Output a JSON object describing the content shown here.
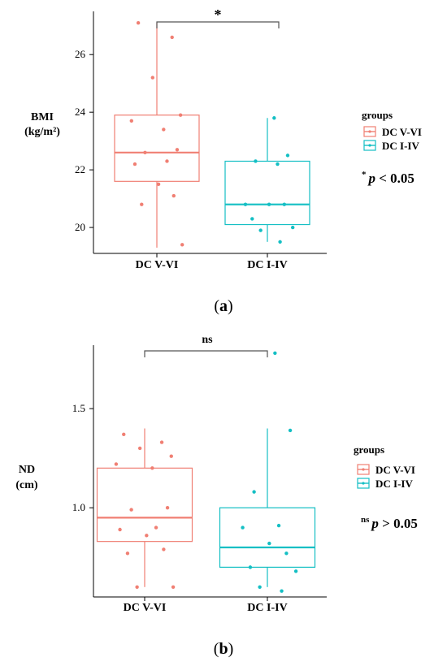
{
  "chart_data": [
    {
      "type": "box",
      "id": "a",
      "ylabel_line1": "BMI",
      "ylabel_line2": "(kg/m²)",
      "ylim": [
        19.1,
        27.5
      ],
      "yticks": [
        "20",
        "22",
        "24",
        "26"
      ],
      "ytick_values": [
        20,
        22,
        24,
        26
      ],
      "categories": [
        "DC V-VI",
        "DC I-IV"
      ],
      "series": [
        {
          "name": "DC V-VI",
          "color": "#f07f73",
          "box": {
            "q1": 21.6,
            "median": 22.6,
            "q3": 23.9,
            "whisker_low": 19.3,
            "whisker_high": 27.1
          },
          "points": [
            27.1,
            26.6,
            25.2,
            23.9,
            23.7,
            23.4,
            22.7,
            22.6,
            22.3,
            22.2,
            21.5,
            21.1,
            20.8,
            19.4
          ]
        },
        {
          "name": "DC I-IV",
          "color": "#14bfc4",
          "box": {
            "q1": 20.1,
            "median": 20.8,
            "q3": 22.3,
            "whisker_low": 19.5,
            "whisker_high": 23.8
          },
          "points": [
            23.8,
            22.5,
            22.3,
            22.2,
            20.8,
            20.8,
            20.8,
            20.3,
            20.0,
            19.9,
            19.5
          ]
        }
      ],
      "significance": "*",
      "legend_title": "groups",
      "note_prefix": "*",
      "note_p": "p",
      "note_rest": " <  0.05",
      "caption_open": "(",
      "caption_letter": "a",
      "caption_close": ")"
    },
    {
      "type": "box",
      "id": "b",
      "ylabel_line1": "ND",
      "ylabel_line2": "(cm)",
      "ylim": [
        0.55,
        1.82
      ],
      "yticks": [
        "1.0",
        "1.5"
      ],
      "ytick_values": [
        1.0,
        1.5
      ],
      "categories": [
        "DC V-VI",
        "DC I-IV"
      ],
      "series": [
        {
          "name": "DC V-VI",
          "color": "#f07f73",
          "box": {
            "q1": 0.83,
            "median": 0.95,
            "q3": 1.2,
            "whisker_low": 0.6,
            "whisker_high": 1.4
          },
          "points": [
            1.37,
            1.33,
            1.3,
            1.26,
            1.22,
            1.2,
            1.0,
            0.99,
            0.9,
            0.89,
            0.86,
            0.79,
            0.77,
            0.6,
            0.6
          ]
        },
        {
          "name": "DC I-IV",
          "color": "#14bfc4",
          "box": {
            "q1": 0.7,
            "median": 0.8,
            "q3": 1.0,
            "whisker_low": 0.6,
            "whisker_high": 1.4
          },
          "points": [
            1.78,
            1.39,
            1.08,
            0.91,
            0.9,
            0.82,
            0.77,
            0.7,
            0.68,
            0.6,
            0.58
          ]
        }
      ],
      "significance": "ns",
      "legend_title": "groups",
      "note_prefix": "ns",
      "note_p": "p",
      "note_rest": " > 0.05",
      "caption_open": "(",
      "caption_letter": "b",
      "caption_close": ")"
    }
  ]
}
